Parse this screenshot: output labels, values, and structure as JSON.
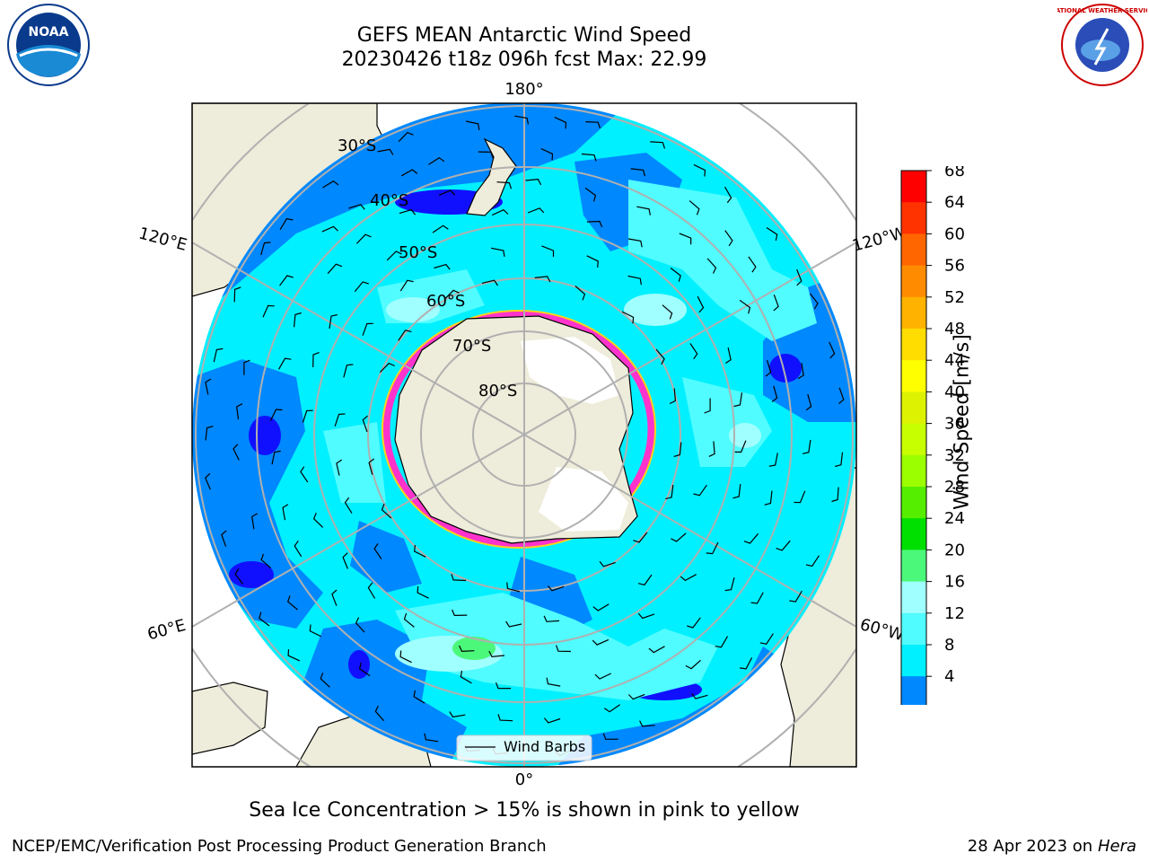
{
  "title": {
    "line1": "GEFS MEAN Antarctic Wind Speed",
    "line2": "20230426 t18z 096h fcst   Max: 22.99"
  },
  "logos": {
    "left": {
      "name": "noara-logo",
      "text": "NOAA"
    },
    "right": {
      "name": "nws-logo",
      "text": "NATIONAL WEATHER SERVICE"
    }
  },
  "map": {
    "longitude_labels": {
      "top": "180°",
      "bottom": "0°",
      "upper_left": "120°E",
      "upper_right": "120°W",
      "lower_left": "60°E",
      "lower_right": "60°W"
    },
    "latitude_labels": [
      "30°S",
      "40°S",
      "50°S",
      "60°S",
      "70°S",
      "80°S"
    ],
    "legend_label": "Wind Barbs"
  },
  "colorbar": {
    "label": "Wind Speed [m/s]",
    "ticks": [
      "68",
      "64",
      "60",
      "56",
      "52",
      "48",
      "44",
      "40",
      "36",
      "32",
      "28",
      "24",
      "20",
      "16",
      "12",
      "8",
      "4"
    ],
    "colors": [
      "#ff0000",
      "#ff3300",
      "#ff6600",
      "#ff8c00",
      "#ffb300",
      "#ffdd00",
      "#ffff00",
      "#ddf200",
      "#c8ff00",
      "#9cff00",
      "#55ee00",
      "#00e000",
      "#4cf87a",
      "#a0ffff",
      "#50fcff",
      "#00f0ff",
      "#0088ff"
    ],
    "under_color": "#1010ff"
  },
  "caption": "Sea Ice Concentration > 15% is shown in pink to yellow",
  "footer": {
    "left": "NCEP/EMC/Verification Post Processing Product Generation Branch",
    "right_date": "28 Apr 2023 on ",
    "right_host": "Hera"
  }
}
